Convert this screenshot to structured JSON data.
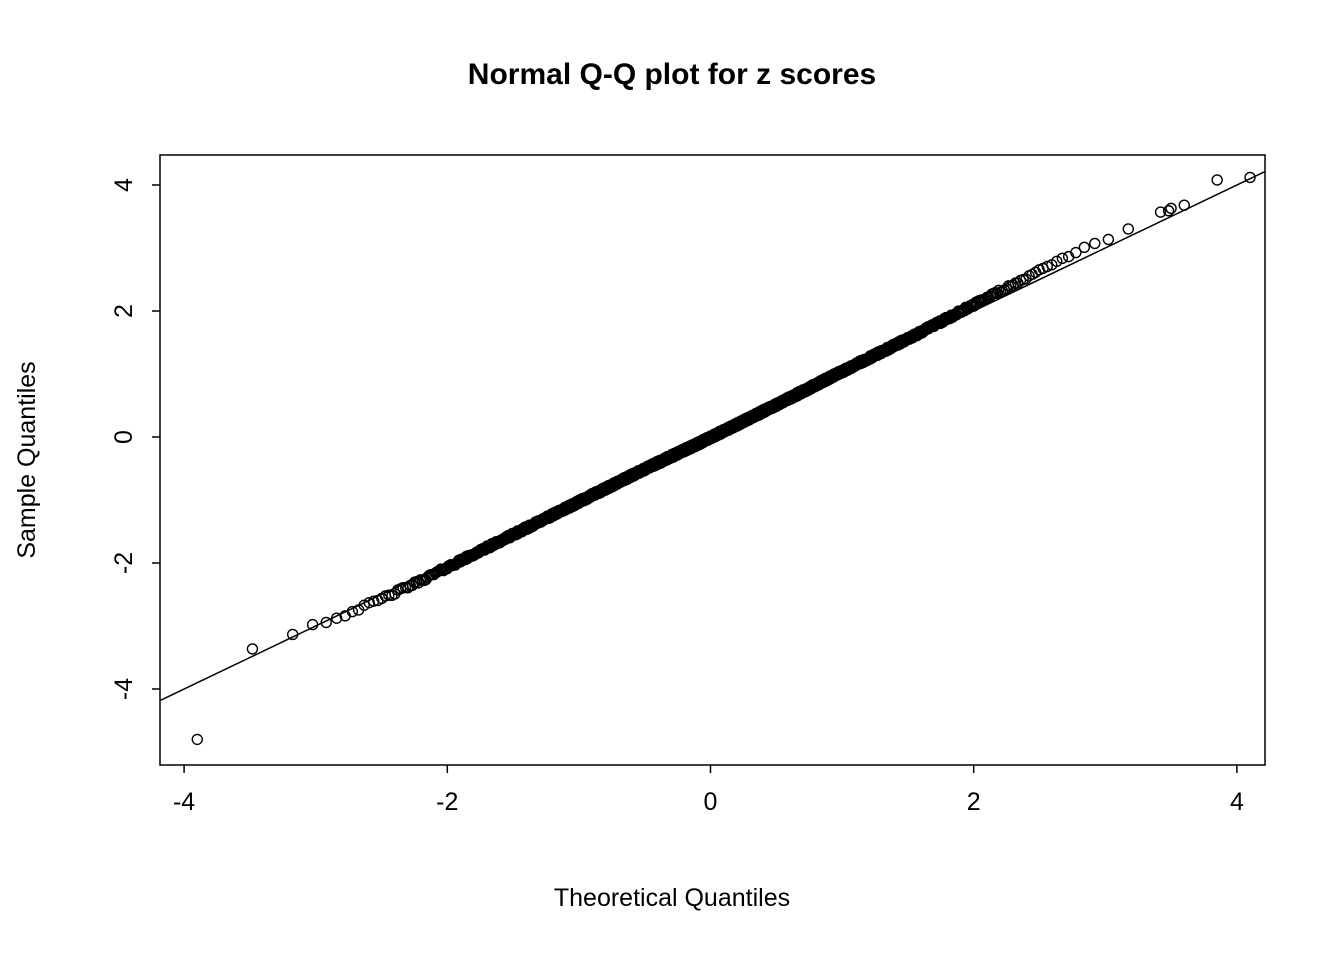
{
  "chart_data": {
    "type": "scatter",
    "title": "Normal Q-Q plot for z scores",
    "xlabel": "Theoretical Quantiles",
    "ylabel": "Sample Quantiles",
    "xlim": [
      -4.2,
      4.2
    ],
    "ylim": [
      -5.2,
      4.5
    ],
    "x_ticks": [
      -4,
      -2,
      0,
      2,
      4
    ],
    "y_ticks": [
      -4,
      -2,
      0,
      2,
      4
    ],
    "grid": false,
    "legend": "none",
    "background_color": "#ffffff",
    "point_color": "#000000",
    "line_color": "#000000",
    "marker": "open-circle",
    "n_points": 2000,
    "reference_line": {
      "slope": 1,
      "intercept": 0
    },
    "qq_curve_anchors": [
      [
        -3.65,
        -3.38
      ],
      [
        -3.5,
        -3.36
      ],
      [
        -3.3,
        -3.27
      ],
      [
        -3.1,
        -3.02
      ],
      [
        -2.9,
        -2.92
      ],
      [
        -2.7,
        -2.75
      ],
      [
        -2.5,
        -2.57
      ],
      [
        -2.2,
        -2.28
      ],
      [
        -2.0,
        -2.07
      ],
      [
        -1.5,
        -1.55
      ],
      [
        -1.0,
        -1.03
      ],
      [
        -0.5,
        -0.51
      ],
      [
        0,
        -0.01
      ],
      [
        0.5,
        0.51
      ],
      [
        1.0,
        1.04
      ],
      [
        1.5,
        1.56
      ],
      [
        2.0,
        2.1
      ],
      [
        2.3,
        2.42
      ],
      [
        2.6,
        2.74
      ],
      [
        2.9,
        3.05
      ],
      [
        3.1,
        3.22
      ],
      [
        3.3,
        3.4
      ],
      [
        3.45,
        3.55
      ]
    ],
    "extra_points": [
      [
        -3.9,
        -4.8
      ],
      [
        3.42,
        3.57
      ],
      [
        3.5,
        3.63
      ],
      [
        3.6,
        3.68
      ],
      [
        3.85,
        4.08
      ],
      [
        4.1,
        4.12
      ]
    ]
  }
}
